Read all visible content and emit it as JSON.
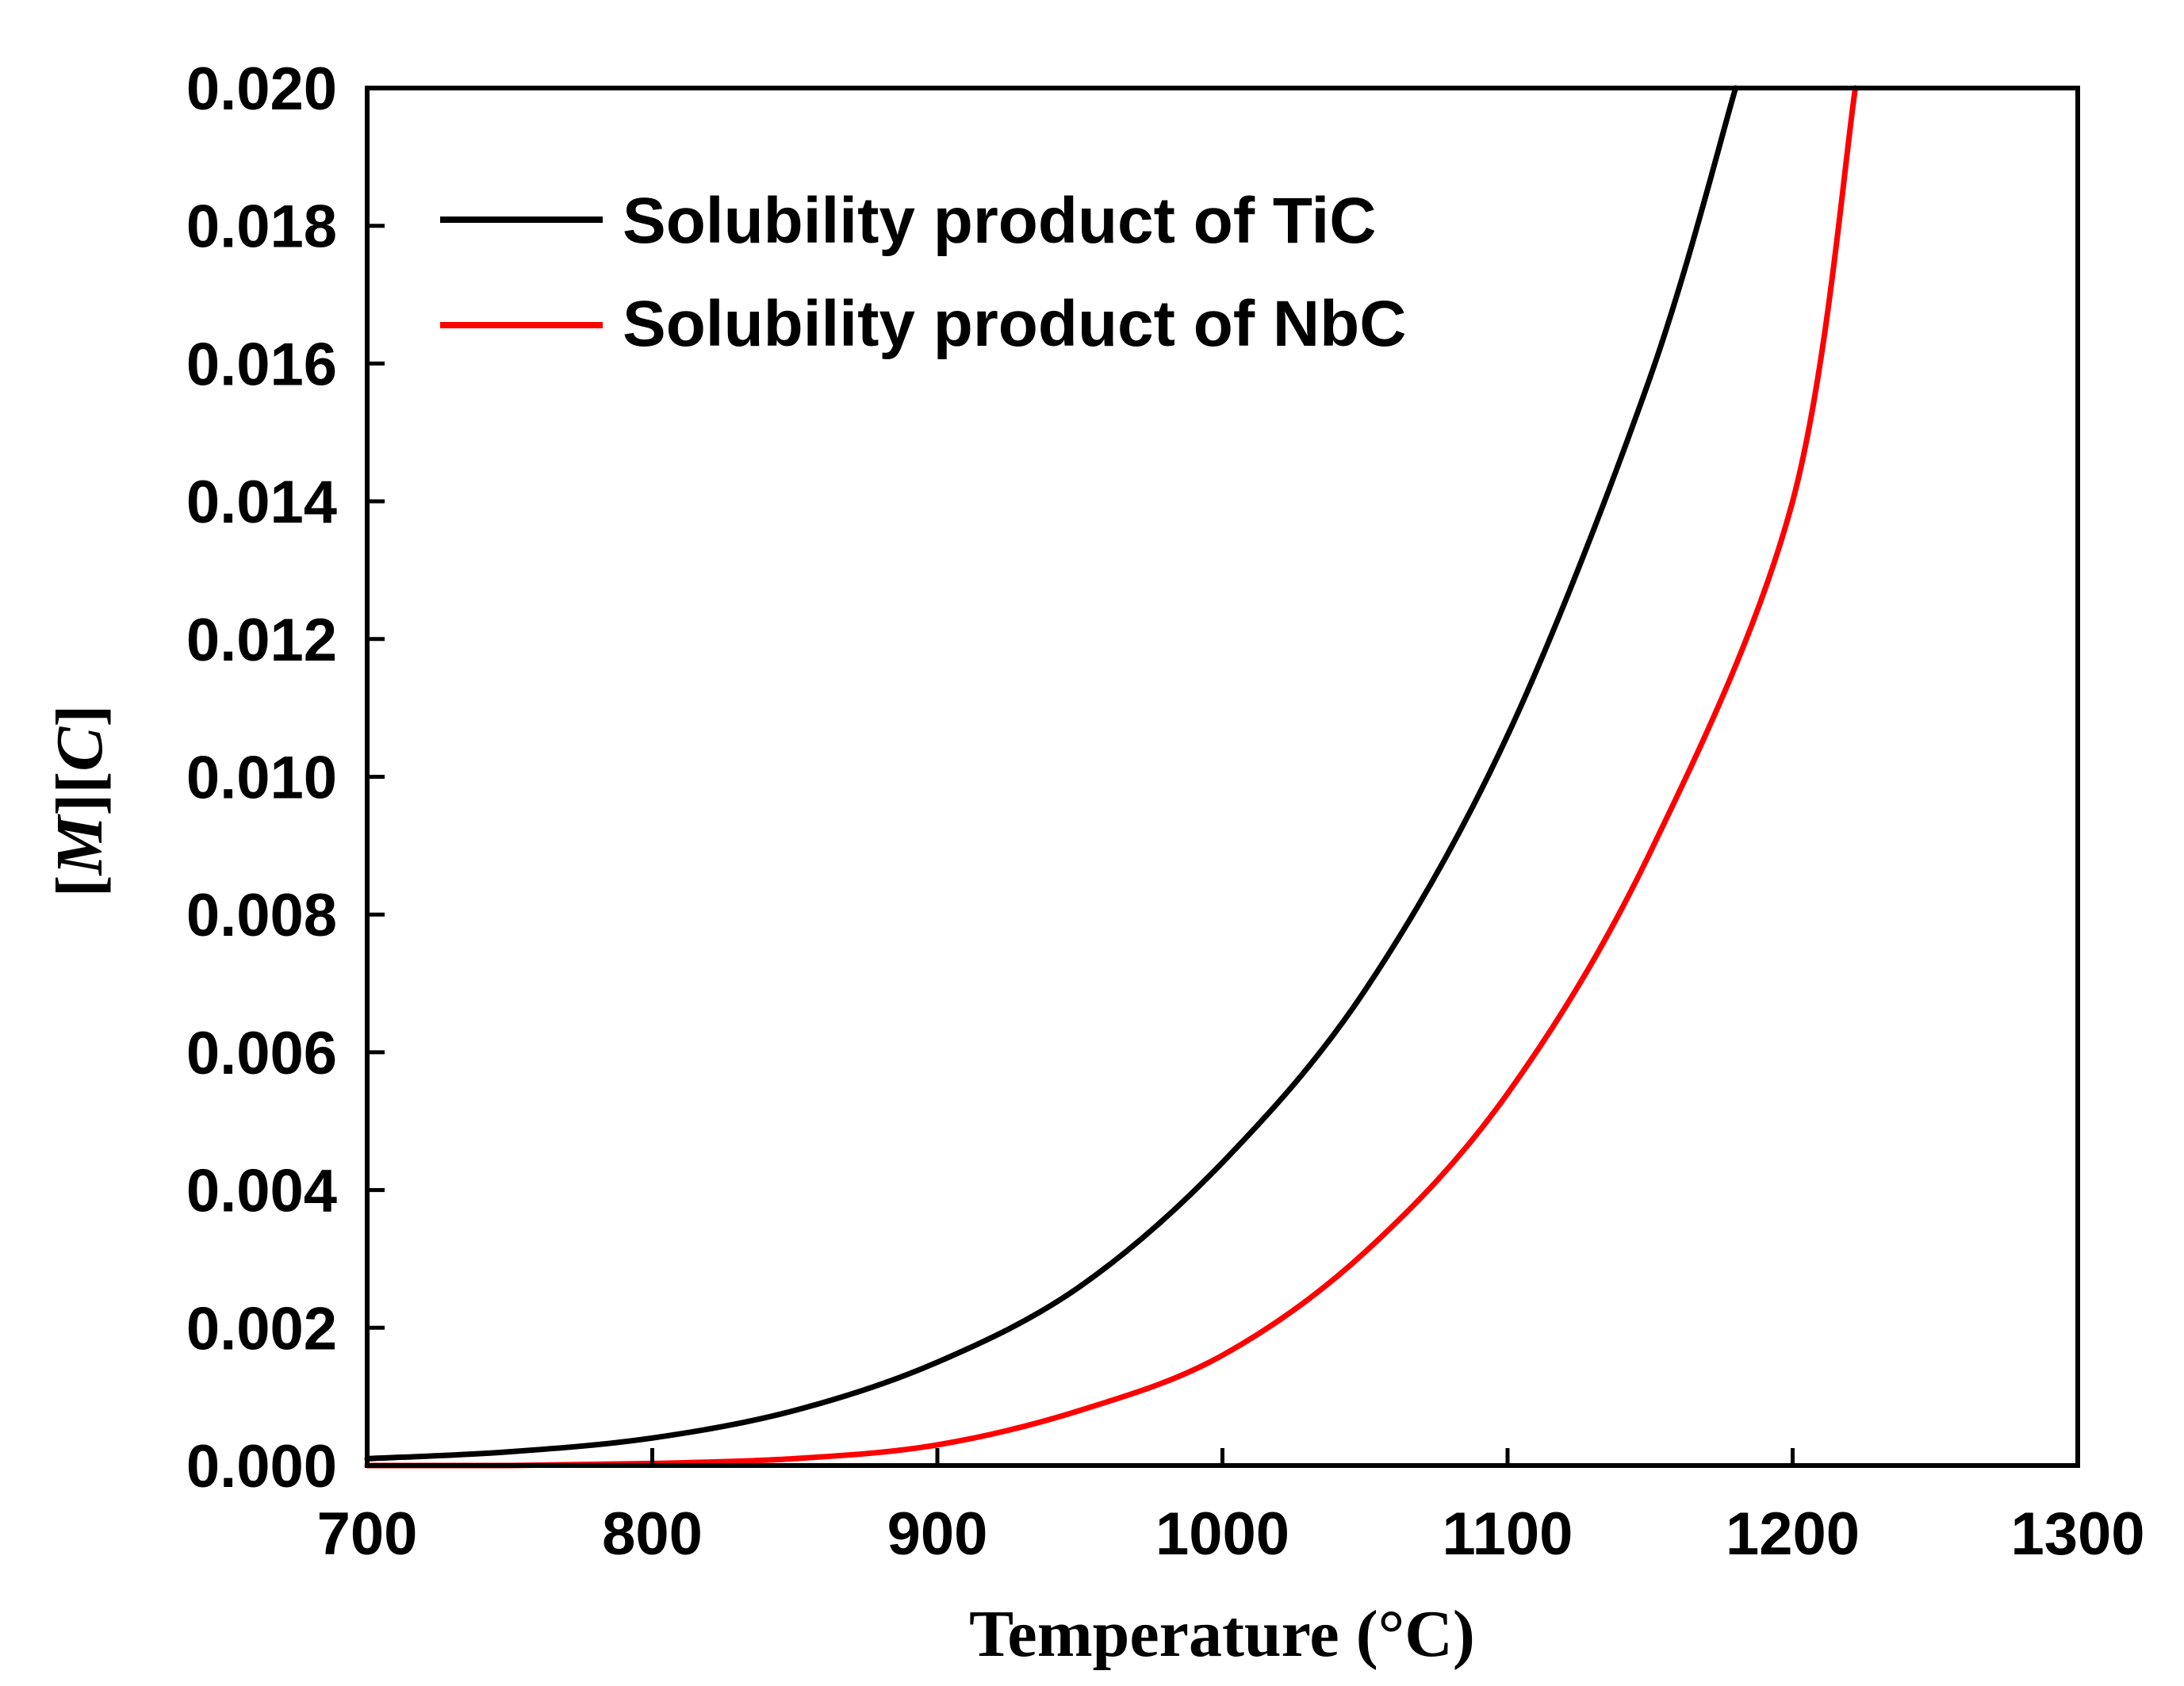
{
  "chart_data": {
    "type": "line",
    "title": "",
    "xlabel": "Temperature (°C)",
    "ylabel_parts": [
      "[",
      "M",
      "][",
      "C",
      "]"
    ],
    "ylabel": "[M][C]",
    "xlim": [
      700,
      1300
    ],
    "ylim": [
      0.0,
      0.02
    ],
    "xticks": [
      700,
      800,
      900,
      1000,
      1100,
      1200,
      1300
    ],
    "xtick_labels": [
      "700",
      "800",
      "900",
      "1000",
      "1100",
      "1200",
      "1300"
    ],
    "yticks": [
      0.0,
      0.002,
      0.004,
      0.006,
      0.008,
      0.01,
      0.012,
      0.014,
      0.016,
      0.018,
      0.02
    ],
    "ytick_labels": [
      "0.000",
      "0.002",
      "0.004",
      "0.006",
      "0.008",
      "0.010",
      "0.012",
      "0.014",
      "0.016",
      "0.018",
      "0.020"
    ],
    "grid": false,
    "legend_position": "top-left",
    "series": [
      {
        "name": "Solubility product of TiC",
        "color": "#000000",
        "x": [
          700,
          750,
          800,
          850,
          900,
          950,
          1000,
          1050,
          1100,
          1150,
          1180
        ],
        "y": [
          0.0001,
          0.0002,
          0.0004,
          0.0008,
          0.0015,
          0.0026,
          0.0044,
          0.0069,
          0.0106,
          0.0158,
          0.02
        ]
      },
      {
        "name": "Solubility product of NbC",
        "color": "#ff0000",
        "x": [
          700,
          750,
          800,
          850,
          900,
          950,
          1000,
          1050,
          1100,
          1150,
          1200,
          1222
        ],
        "y": [
          0.0,
          0.0,
          3e-05,
          0.0001,
          0.0003,
          0.0008,
          0.0016,
          0.0031,
          0.0054,
          0.0089,
          0.014,
          0.02
        ]
      }
    ]
  }
}
